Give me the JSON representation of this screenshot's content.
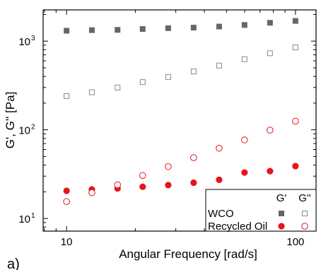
{
  "chart_data": {
    "type": "scatter",
    "panel_label": "a)",
    "xlabel": "Angular Frequency [rad/s]",
    "ylabel": "G', G'' [Pa]",
    "x_scale": "log",
    "y_scale": "log",
    "xlim": [
      7.9,
      123
    ],
    "ylim": [
      7.2,
      2250
    ],
    "x_ticks": [
      {
        "value": 10,
        "label": "10"
      },
      {
        "value": 100,
        "label": "100"
      }
    ],
    "y_ticks": [
      {
        "value": 10,
        "label": "10",
        "exp": "1"
      },
      {
        "value": 100,
        "label": "10",
        "exp": "2"
      },
      {
        "value": 1000,
        "label": "10",
        "exp": "3"
      }
    ],
    "x": [
      10,
      12.9,
      16.7,
      21.5,
      27.8,
      35.9,
      46.4,
      59.9,
      77.4,
      100
    ],
    "legend": {
      "position": "bottom-right",
      "col_headers": [
        "G'",
        "G''"
      ],
      "rows": [
        {
          "label": "WCO",
          "color": "#666666"
        },
        {
          "label": "Recycled Oil",
          "color": "#e8141c"
        }
      ]
    },
    "series": [
      {
        "group": "WCO",
        "modulus": "G'",
        "marker": "square-filled",
        "color": "#666666",
        "values": [
          1310,
          1330,
          1340,
          1370,
          1400,
          1420,
          1460,
          1520,
          1610,
          1690
        ]
      },
      {
        "group": "WCO",
        "modulus": "G''",
        "marker": "square-open",
        "color": "#888888",
        "values": [
          240,
          265,
          300,
          345,
          395,
          455,
          530,
          625,
          730,
          850
        ]
      },
      {
        "group": "Recycled Oil",
        "modulus": "G'",
        "marker": "circle-filled",
        "color": "#e8141c",
        "values": [
          20.5,
          21.2,
          21.8,
          22.8,
          23.8,
          25.3,
          27.3,
          33,
          34.2,
          39
        ]
      },
      {
        "group": "Recycled Oil",
        "modulus": "G''",
        "marker": "circle-open",
        "color": "#e8141c",
        "values": [
          15.5,
          19.5,
          24,
          30.5,
          38.5,
          48.5,
          62,
          77,
          99,
          125
        ]
      }
    ]
  }
}
